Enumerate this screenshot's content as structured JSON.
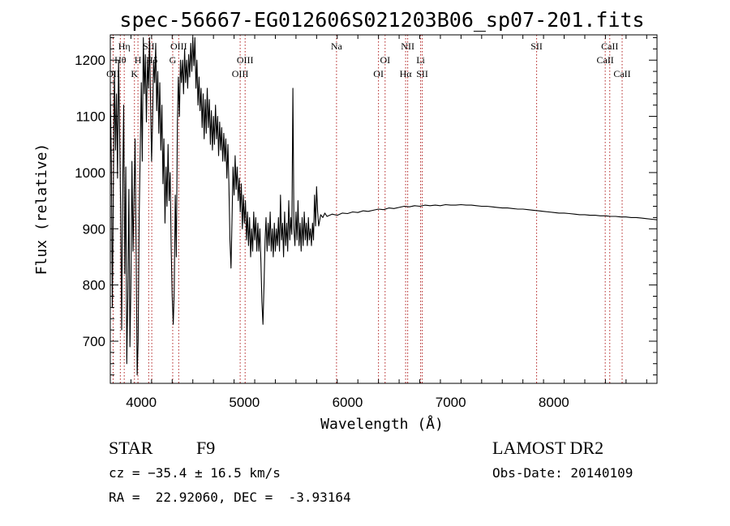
{
  "chart_data": {
    "type": "line",
    "title": "spec-56667-EG012606S021203B06_sp07-201.fits",
    "xlabel": "Wavelength (Å)",
    "ylabel": "Flux (relative)",
    "xlim": [
      3700,
      9000
    ],
    "ylim": [
      625,
      1245
    ],
    "xticks": [
      4000,
      5000,
      6000,
      7000,
      8000
    ],
    "yticks": [
      700,
      800,
      900,
      1000,
      1100,
      1200
    ],
    "x_minor_step": 200,
    "y_minor_step": 20,
    "series": [
      {
        "points": [
          [
            3700,
            1140
          ],
          [
            3710,
            1020
          ],
          [
            3720,
            760
          ],
          [
            3730,
            980
          ],
          [
            3740,
            1180
          ],
          [
            3750,
            1040
          ],
          [
            3760,
            1140
          ],
          [
            3770,
            990
          ],
          [
            3780,
            1200
          ],
          [
            3790,
            1080
          ],
          [
            3800,
            940
          ],
          [
            3810,
            720
          ],
          [
            3820,
            980
          ],
          [
            3830,
            1120
          ],
          [
            3840,
            820
          ],
          [
            3850,
            1010
          ],
          [
            3860,
            660
          ],
          [
            3870,
            780
          ],
          [
            3880,
            970
          ],
          [
            3890,
            690
          ],
          [
            3900,
            800
          ],
          [
            3910,
            1020
          ],
          [
            3920,
            860
          ],
          [
            3930,
            950
          ],
          [
            3940,
            1060
          ],
          [
            3950,
            870
          ],
          [
            3960,
            640
          ],
          [
            3970,
            700
          ],
          [
            3980,
            920
          ],
          [
            3990,
            1040
          ],
          [
            4000,
            1160
          ],
          [
            4010,
            1020
          ],
          [
            4020,
            1240
          ],
          [
            4030,
            1140
          ],
          [
            4040,
            1210
          ],
          [
            4050,
            1090
          ],
          [
            4060,
            1200
          ],
          [
            4070,
            1150
          ],
          [
            4080,
            1240
          ],
          [
            4090,
            1130
          ],
          [
            4100,
            1020
          ],
          [
            4110,
            1090
          ],
          [
            4120,
            1200
          ],
          [
            4130,
            1160
          ],
          [
            4140,
            1230
          ],
          [
            4150,
            1110
          ],
          [
            4160,
            1180
          ],
          [
            4170,
            1070
          ],
          [
            4180,
            1160
          ],
          [
            4190,
            1040
          ],
          [
            4200,
            1120
          ],
          [
            4210,
            980
          ],
          [
            4220,
            1060
          ],
          [
            4230,
            910
          ],
          [
            4240,
            1010
          ],
          [
            4250,
            940
          ],
          [
            4260,
            1050
          ],
          [
            4270,
            950
          ],
          [
            4280,
            1000
          ],
          [
            4290,
            870
          ],
          [
            4300,
            780
          ],
          [
            4310,
            730
          ],
          [
            4320,
            790
          ],
          [
            4330,
            960
          ],
          [
            4340,
            850
          ],
          [
            4350,
            1090
          ],
          [
            4360,
            1170
          ],
          [
            4370,
            1100
          ],
          [
            4380,
            1200
          ],
          [
            4390,
            1160
          ],
          [
            4400,
            1200
          ],
          [
            4410,
            1140
          ],
          [
            4420,
            1220
          ],
          [
            4430,
            1160
          ],
          [
            4440,
            1200
          ],
          [
            4450,
            1150
          ],
          [
            4460,
            1210
          ],
          [
            4470,
            1170
          ],
          [
            4480,
            1230
          ],
          [
            4490,
            1180
          ],
          [
            4500,
            1240
          ],
          [
            4510,
            1190
          ],
          [
            4520,
            1240
          ],
          [
            4530,
            1150
          ],
          [
            4540,
            1200
          ],
          [
            4550,
            1120
          ],
          [
            4560,
            1170
          ],
          [
            4570,
            1110
          ],
          [
            4580,
            1150
          ],
          [
            4590,
            1080
          ],
          [
            4600,
            1140
          ],
          [
            4610,
            1060
          ],
          [
            4620,
            1130
          ],
          [
            4630,
            1070
          ],
          [
            4640,
            1150
          ],
          [
            4650,
            1080
          ],
          [
            4660,
            1130
          ],
          [
            4670,
            1050
          ],
          [
            4680,
            1110
          ],
          [
            4690,
            1040
          ],
          [
            4700,
            1100
          ],
          [
            4710,
            1050
          ],
          [
            4720,
            1120
          ],
          [
            4730,
            1060
          ],
          [
            4740,
            1100
          ],
          [
            4750,
            1030
          ],
          [
            4760,
            1090
          ],
          [
            4770,
            1040
          ],
          [
            4780,
            1080
          ],
          [
            4790,
            1020
          ],
          [
            4800,
            1070
          ],
          [
            4810,
            1020
          ],
          [
            4820,
            1060
          ],
          [
            4830,
            990
          ],
          [
            4840,
            1050
          ],
          [
            4850,
            980
          ],
          [
            4860,
            880
          ],
          [
            4870,
            830
          ],
          [
            4880,
            920
          ],
          [
            4890,
            1010
          ],
          [
            4900,
            960
          ],
          [
            4910,
            1030
          ],
          [
            4920,
            970
          ],
          [
            4930,
            1010
          ],
          [
            4940,
            950
          ],
          [
            4950,
            990
          ],
          [
            4960,
            930
          ],
          [
            4970,
            980
          ],
          [
            4980,
            900
          ],
          [
            4990,
            960
          ],
          [
            5000,
            910
          ],
          [
            5010,
            950
          ],
          [
            5020,
            880
          ],
          [
            5030,
            930
          ],
          [
            5040,
            870
          ],
          [
            5050,
            920
          ],
          [
            5060,
            850
          ],
          [
            5070,
            900
          ],
          [
            5080,
            860
          ],
          [
            5090,
            930
          ],
          [
            5100,
            880
          ],
          [
            5110,
            920
          ],
          [
            5120,
            860
          ],
          [
            5130,
            910
          ],
          [
            5140,
            860
          ],
          [
            5150,
            900
          ],
          [
            5160,
            840
          ],
          [
            5170,
            770
          ],
          [
            5180,
            730
          ],
          [
            5190,
            800
          ],
          [
            5200,
            880
          ],
          [
            5210,
            920
          ],
          [
            5220,
            860
          ],
          [
            5230,
            910
          ],
          [
            5240,
            870
          ],
          [
            5250,
            930
          ],
          [
            5260,
            860
          ],
          [
            5270,
            900
          ],
          [
            5280,
            850
          ],
          [
            5290,
            910
          ],
          [
            5300,
            860
          ],
          [
            5310,
            900
          ],
          [
            5320,
            870
          ],
          [
            5330,
            920
          ],
          [
            5340,
            860
          ],
          [
            5350,
            960
          ],
          [
            5360,
            880
          ],
          [
            5370,
            910
          ],
          [
            5380,
            850
          ],
          [
            5390,
            930
          ],
          [
            5400,
            870
          ],
          [
            5410,
            910
          ],
          [
            5420,
            860
          ],
          [
            5430,
            950
          ],
          [
            5440,
            880
          ],
          [
            5450,
            920
          ],
          [
            5460,
            890
          ],
          [
            5470,
            1150
          ],
          [
            5480,
            900
          ],
          [
            5490,
            870
          ],
          [
            5500,
            930
          ],
          [
            5510,
            880
          ],
          [
            5520,
            950
          ],
          [
            5530,
            870
          ],
          [
            5540,
            910
          ],
          [
            5550,
            860
          ],
          [
            5560,
            920
          ],
          [
            5570,
            870
          ],
          [
            5580,
            930
          ],
          [
            5590,
            880
          ],
          [
            5600,
            910
          ],
          [
            5610,
            870
          ],
          [
            5620,
            920
          ],
          [
            5630,
            880
          ],
          [
            5640,
            900
          ],
          [
            5650,
            870
          ],
          [
            5660,
            910
          ],
          [
            5670,
            880
          ],
          [
            5680,
            960
          ],
          [
            5690,
            905
          ],
          [
            5700,
            975
          ],
          [
            5710,
            930
          ],
          [
            5720,
            905
          ],
          [
            5740,
            925
          ],
          [
            5760,
            920
          ],
          [
            5780,
            928
          ],
          [
            5800,
            922
          ],
          [
            5850,
            926
          ],
          [
            5900,
            924
          ],
          [
            5950,
            928
          ],
          [
            6000,
            927
          ],
          [
            6050,
            930
          ],
          [
            6100,
            929
          ],
          [
            6150,
            932
          ],
          [
            6200,
            931
          ],
          [
            6250,
            933
          ],
          [
            6300,
            935
          ],
          [
            6350,
            934
          ],
          [
            6400,
            937
          ],
          [
            6450,
            936
          ],
          [
            6500,
            938
          ],
          [
            6550,
            940
          ],
          [
            6600,
            939
          ],
          [
            6650,
            941
          ],
          [
            6700,
            940
          ],
          [
            6750,
            942
          ],
          [
            6800,
            941
          ],
          [
            6850,
            942
          ],
          [
            6900,
            941
          ],
          [
            6950,
            943
          ],
          [
            7000,
            942
          ],
          [
            7050,
            942
          ],
          [
            7100,
            943
          ],
          [
            7150,
            942
          ],
          [
            7200,
            942
          ],
          [
            7250,
            941
          ],
          [
            7300,
            940
          ],
          [
            7350,
            940
          ],
          [
            7400,
            939
          ],
          [
            7450,
            938
          ],
          [
            7500,
            937
          ],
          [
            7550,
            937
          ],
          [
            7600,
            936
          ],
          [
            7650,
            935
          ],
          [
            7700,
            935
          ],
          [
            7750,
            934
          ],
          [
            7800,
            933
          ],
          [
            7850,
            932
          ],
          [
            7900,
            931
          ],
          [
            7950,
            930
          ],
          [
            8000,
            929
          ],
          [
            8050,
            928
          ],
          [
            8100,
            928
          ],
          [
            8150,
            927
          ],
          [
            8200,
            926
          ],
          [
            8250,
            925
          ],
          [
            8300,
            925
          ],
          [
            8350,
            924
          ],
          [
            8400,
            924
          ],
          [
            8450,
            923
          ],
          [
            8500,
            923
          ],
          [
            8550,
            922
          ],
          [
            8600,
            922
          ],
          [
            8650,
            921
          ],
          [
            8700,
            921
          ],
          [
            8750,
            920
          ],
          [
            8800,
            920
          ],
          [
            8850,
            919
          ],
          [
            8900,
            918
          ],
          [
            8950,
            917
          ],
          [
            9000,
            916
          ]
        ]
      }
    ],
    "spectral_lines": [
      {
        "label": "Hη",
        "wavelength": 3835,
        "row": 1
      },
      {
        "label": "Hθ",
        "wavelength": 3797,
        "row": 2
      },
      {
        "label": "OII",
        "wavelength": 3727,
        "row": 3
      },
      {
        "label": "H",
        "wavelength": 3968,
        "row": 2
      },
      {
        "label": "K",
        "wavelength": 3934,
        "row": 3
      },
      {
        "label": "SII",
        "wavelength": 4072,
        "row": 1
      },
      {
        "label": "Hδ",
        "wavelength": 4102,
        "row": 2
      },
      {
        "label": "OIII",
        "wavelength": 4363,
        "row": 1
      },
      {
        "label": "G",
        "wavelength": 4305,
        "row": 2
      },
      {
        "label": "OIII",
        "wavelength": 5007,
        "row": 2
      },
      {
        "label": "OIII",
        "wavelength": 4959,
        "row": 3
      },
      {
        "label": "Na",
        "wavelength": 5893,
        "row": 1
      },
      {
        "label": "OI",
        "wavelength": 6364,
        "row": 2
      },
      {
        "label": "OI",
        "wavelength": 6300,
        "row": 3
      },
      {
        "label": "NII",
        "wavelength": 6583,
        "row": 1
      },
      {
        "label": "Li",
        "wavelength": 6708,
        "row": 2
      },
      {
        "label": "Hα",
        "wavelength": 6563,
        "row": 3
      },
      {
        "label": "SII",
        "wavelength": 6724,
        "row": 3
      },
      {
        "label": "SII",
        "wavelength": 7833,
        "row": 1
      },
      {
        "label": "CaII",
        "wavelength": 8542,
        "row": 1
      },
      {
        "label": "CaII",
        "wavelength": 8498,
        "row": 2
      },
      {
        "label": "CaII",
        "wavelength": 8662,
        "row": 3
      }
    ]
  },
  "info": {
    "object_class": "STAR",
    "subclass": "F9",
    "survey": "LAMOST DR2",
    "redshift": "cz = −35.4 ± 16.5 km/s",
    "obs_date": "Obs-Date: 20140109",
    "coordinates": "RA =  22.92060, DEC =  -3.93164"
  },
  "colors": {
    "spectrum": "#000000",
    "line_marker": "#b22222",
    "axes": "#000000",
    "background": "#ffffff"
  }
}
